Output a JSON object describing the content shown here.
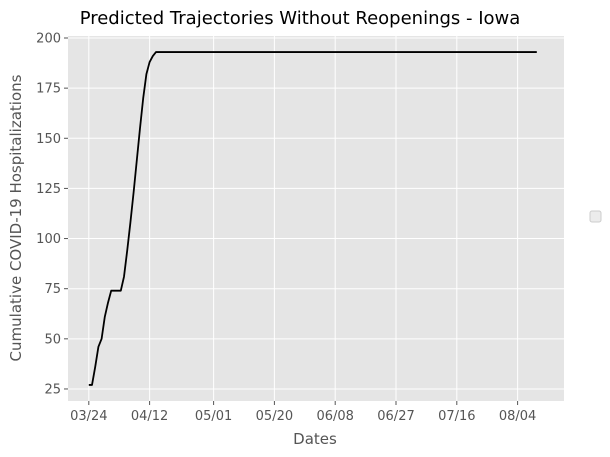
{
  "chart_data": {
    "type": "line",
    "title": "Predicted Trajectories Without Reopenings - Iowa",
    "xlabel": "Dates",
    "ylabel": "Cumulative COVID-19 Hospitalizations",
    "x_tick_labels": [
      "03/24",
      "04/12",
      "05/01",
      "05/20",
      "06/08",
      "06/27",
      "07/16",
      "08/04"
    ],
    "y_tick_labels": [
      "25",
      "50",
      "75",
      "100",
      "125",
      "150",
      "175",
      "200"
    ],
    "y_ticks": [
      25,
      50,
      75,
      100,
      125,
      150,
      175,
      200
    ],
    "x_tick_days": [
      0,
      19,
      39,
      58,
      77,
      96,
      115,
      134
    ],
    "xlim_days": [
      -6.5,
      148.5
    ],
    "ylim": [
      19,
      201
    ],
    "grid": true,
    "legend": "right (empty)",
    "colors": {
      "background": "#e5e5e5",
      "grid": "#ffffff",
      "line": "#000000"
    },
    "series": [
      {
        "x": [
          "03/24",
          "03/25",
          "03/26",
          "03/27",
          "03/28",
          "03/29",
          "03/30",
          "03/31",
          "04/01",
          "04/02",
          "04/03",
          "04/04",
          "04/05",
          "04/06",
          "04/07",
          "04/08",
          "04/09",
          "04/10",
          "04/11",
          "04/12",
          "04/13",
          "04/14",
          "04/15",
          "04/16",
          "04/17",
          "04/18",
          "08/11"
        ],
        "values": [
          27,
          27,
          36,
          46,
          50,
          61,
          68,
          74,
          74,
          74,
          74,
          81,
          94,
          108,
          123,
          139,
          155,
          170,
          182,
          188,
          191,
          193,
          193,
          193,
          193,
          193,
          193
        ]
      }
    ]
  }
}
